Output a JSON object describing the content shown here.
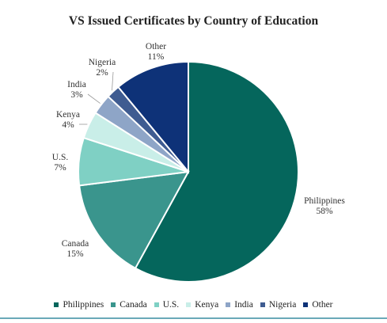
{
  "chart_data": {
    "type": "pie",
    "title": "VS Issued Certificates by Country of Education",
    "slices": [
      {
        "label": "Philippines",
        "value": 58,
        "display": "58%",
        "color": "#05665c"
      },
      {
        "label": "Canada",
        "value": 15,
        "display": "15%",
        "color": "#3a958d"
      },
      {
        "label": "U.S.",
        "value": 7,
        "display": "7%",
        "color": "#7fd0c4"
      },
      {
        "label": "Kenya",
        "value": 4,
        "display": "4%",
        "color": "#c9eee8"
      },
      {
        "label": "India",
        "value": 3,
        "display": "3%",
        "color": "#8ea5c7"
      },
      {
        "label": "Nigeria",
        "value": 2,
        "display": "2%",
        "color": "#3f5c91"
      },
      {
        "label": "Other",
        "value": 11,
        "display": "11%",
        "color": "#0e3278"
      }
    ],
    "legend_position": "bottom",
    "legend": [
      "Philippines",
      "Canada",
      "U.S.",
      "Kenya",
      "India",
      "Nigeria",
      "Other"
    ]
  }
}
